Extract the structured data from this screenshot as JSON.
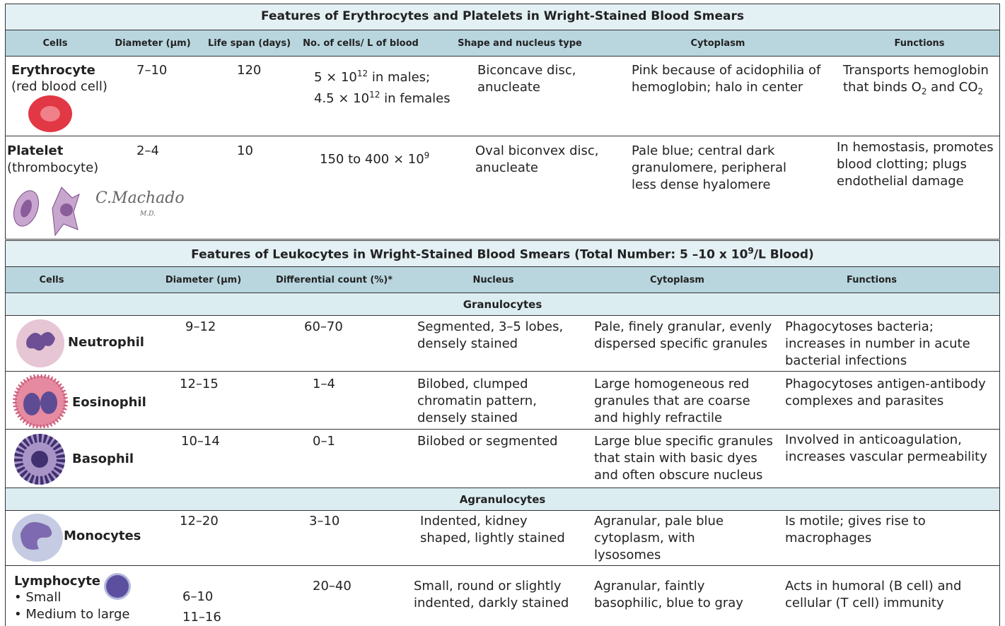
{
  "table1": {
    "title": "Features of Erythrocytes and Platelets in Wright-Stained Blood Smears",
    "headers": [
      "Cells",
      "Diameter (µm)",
      "Life span (days)",
      "No. of cells/ L of blood",
      "Shape and nucleus type",
      "Cytoplasm",
      "Functions"
    ],
    "rows": [
      {
        "name": "Erythrocyte",
        "alt": "(red blood cell)",
        "diameter": "7–10",
        "life_span": "120",
        "count": [
          "5 × 10",
          "12",
          " in males;",
          "4.5 × 10",
          "12",
          " in females"
        ],
        "shape": "Biconcave disc, anucleate",
        "cytoplasm": "Pink because of acidophilia of hemoglobin; halo in center",
        "functions": [
          "Transports hemoglobin that binds O",
          "2",
          " and CO",
          "2"
        ]
      },
      {
        "name": "Platelet",
        "alt": "(thrombocyte)",
        "diameter": "2–4",
        "life_span": "10",
        "count": [
          "150 to 400 × 10",
          "9"
        ],
        "shape": "Oval biconvex disc, anucleate",
        "cytoplasm": "Pale blue; central dark granulomere, peripheral less dense hyalomere",
        "functions": "In hemostasis, promotes blood clotting; plugs endothelial damage"
      }
    ],
    "signature": [
      "C.Machado",
      "M.D."
    ]
  },
  "table2": {
    "title": [
      "Features of Leukocytes in Wright-Stained Blood Smears (Total Number: 5 –10 x 10",
      "9",
      "/L Blood)"
    ],
    "headers": [
      "Cells",
      "Diameter (µm)",
      "Differential count (%)*",
      "Nucleus",
      "Cytoplasm",
      "Functions"
    ],
    "groups": [
      {
        "name": "Granulocytes",
        "rows": [
          {
            "name": "Neutrophil",
            "diameter": "9–12",
            "differential": "60–70",
            "nucleus": "Segmented, 3–5 lobes, densely stained",
            "cytoplasm": "Pale, finely granular, evenly dispersed specific granules",
            "functions": "Phagocytoses bacteria; increases in number in acute bacterial infections"
          },
          {
            "name": "Eosinophil",
            "diameter": "12–15",
            "differential": "1–4",
            "nucleus": "Bilobed, clumped chromatin pattern, densely stained",
            "cytoplasm": "Large homogeneous red granules that are coarse and highly refractile",
            "functions": "Phagocytoses antigen-antibody complexes and parasites"
          },
          {
            "name": "Basophil",
            "diameter": "10–14",
            "differential": "0–1",
            "nucleus": "Bilobed or segmented",
            "cytoplasm": "Large blue specific granules that stain with basic dyes and often obscure nucleus",
            "functions": "Involved in anticoagulation, increases vascular permeability"
          }
        ]
      },
      {
        "name": "Agranulocytes",
        "rows": [
          {
            "name": "Monocytes",
            "diameter": "12–20",
            "differential": "3–10",
            "nucleus": "Indented, kidney shaped, lightly stained",
            "cytoplasm": "Agranular, pale blue cytoplasm, with lysosomes",
            "functions": "Is motile; gives rise to macrophages"
          },
          {
            "name": "Lymphocyte",
            "subtypes": [
              "• Small",
              "• Medium to large"
            ],
            "diameters": [
              "6–10",
              "11–16"
            ],
            "differential": "20–40",
            "nucleus": "Small, round or slightly indented, darkly stained",
            "cytoplasm": "Agranular, faintly basophilic, blue to gray",
            "functions": "Acts in humoral (B cell) and cellular (T cell) immunity"
          }
        ]
      }
    ]
  }
}
